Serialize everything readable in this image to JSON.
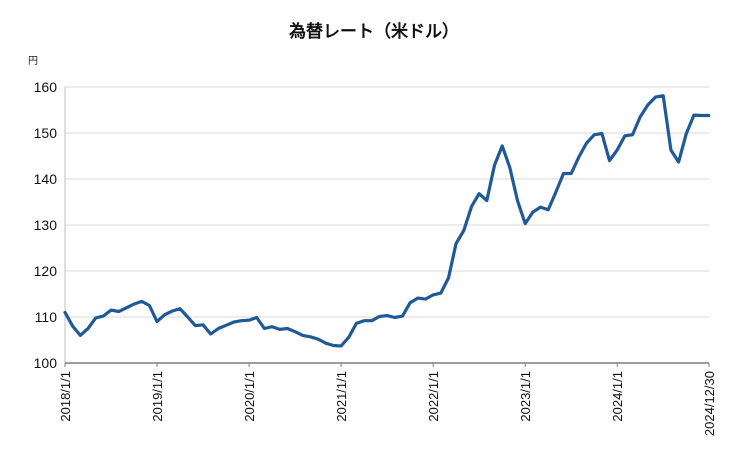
{
  "chart_data": {
    "type": "line",
    "title": "為替レート（米ドル）",
    "ylabel": "円",
    "xlabel": "",
    "ylim": [
      100,
      160
    ],
    "yticks": [
      "100",
      "110",
      "120",
      "130",
      "140",
      "150",
      "160"
    ],
    "grid": true,
    "xlim_months": [
      0,
      83.97
    ],
    "xticks": [
      {
        "label": "2018/1/1"
      },
      {
        "label": "2019/1/1"
      },
      {
        "label": "2020/1/1"
      },
      {
        "label": "2021/1/1"
      },
      {
        "label": "2022/1/1"
      },
      {
        "label": "2023/1/1"
      },
      {
        "label": "2024/1/1"
      },
      {
        "label": "2024/12/30"
      }
    ],
    "series": [
      {
        "name": "",
        "color": "#1f5a96",
        "x": [
          "2018-01",
          "2018-02",
          "2018-03",
          "2018-04",
          "2018-05",
          "2018-06",
          "2018-07",
          "2018-08",
          "2018-09",
          "2018-10",
          "2018-11",
          "2018-12",
          "2019-01",
          "2019-02",
          "2019-03",
          "2019-04",
          "2019-05",
          "2019-06",
          "2019-07",
          "2019-08",
          "2019-09",
          "2019-10",
          "2019-11",
          "2019-12",
          "2020-01",
          "2020-02",
          "2020-03",
          "2020-04",
          "2020-05",
          "2020-06",
          "2020-07",
          "2020-08",
          "2020-09",
          "2020-10",
          "2020-11",
          "2020-12",
          "2021-01",
          "2021-02",
          "2021-03",
          "2021-04",
          "2021-05",
          "2021-06",
          "2021-07",
          "2021-08",
          "2021-09",
          "2021-10",
          "2021-11",
          "2021-12",
          "2022-01",
          "2022-02",
          "2022-03",
          "2022-04",
          "2022-05",
          "2022-06",
          "2022-07",
          "2022-08",
          "2022-09",
          "2022-10",
          "2022-11",
          "2022-12",
          "2023-01",
          "2023-02",
          "2023-03",
          "2023-04",
          "2023-05",
          "2023-06",
          "2023-07",
          "2023-08",
          "2023-09",
          "2023-10",
          "2023-11",
          "2023-12",
          "2024-01",
          "2024-02",
          "2024-03",
          "2024-04",
          "2024-05",
          "2024-06",
          "2024-07",
          "2024-08",
          "2024-09",
          "2024-10",
          "2024-11",
          "2024-12",
          "2024-12-30"
        ],
        "values": [
          111,
          108,
          106,
          107.5,
          109.8,
          110.2,
          111.5,
          111.2,
          112,
          112.8,
          113.4,
          112.5,
          109,
          110.5,
          111.3,
          111.8,
          110,
          108.1,
          108.3,
          106.3,
          107.5,
          108.2,
          108.9,
          109.2,
          109.3,
          109.9,
          107.5,
          107.9,
          107.3,
          107.5,
          106.8,
          106,
          105.7,
          105.2,
          104.3,
          103.8,
          103.7,
          105.6,
          108.6,
          109.2,
          109.2,
          110.1,
          110.3,
          109.9,
          110.2,
          113.1,
          114.1,
          113.9,
          114.8,
          115.2,
          118.5,
          126,
          128.8,
          134,
          136.8,
          135.3,
          143,
          147.2,
          142.5,
          135.3,
          130.3,
          132.8,
          133.9,
          133.3,
          137.1,
          141.2,
          141.2,
          144.8,
          147.8,
          149.6,
          149.9,
          144,
          146.3,
          149.4,
          149.6,
          153.5,
          156.1,
          157.8,
          158.1,
          146.3,
          143.7,
          149.8,
          153.9,
          153.8,
          153.8
        ]
      }
    ]
  }
}
